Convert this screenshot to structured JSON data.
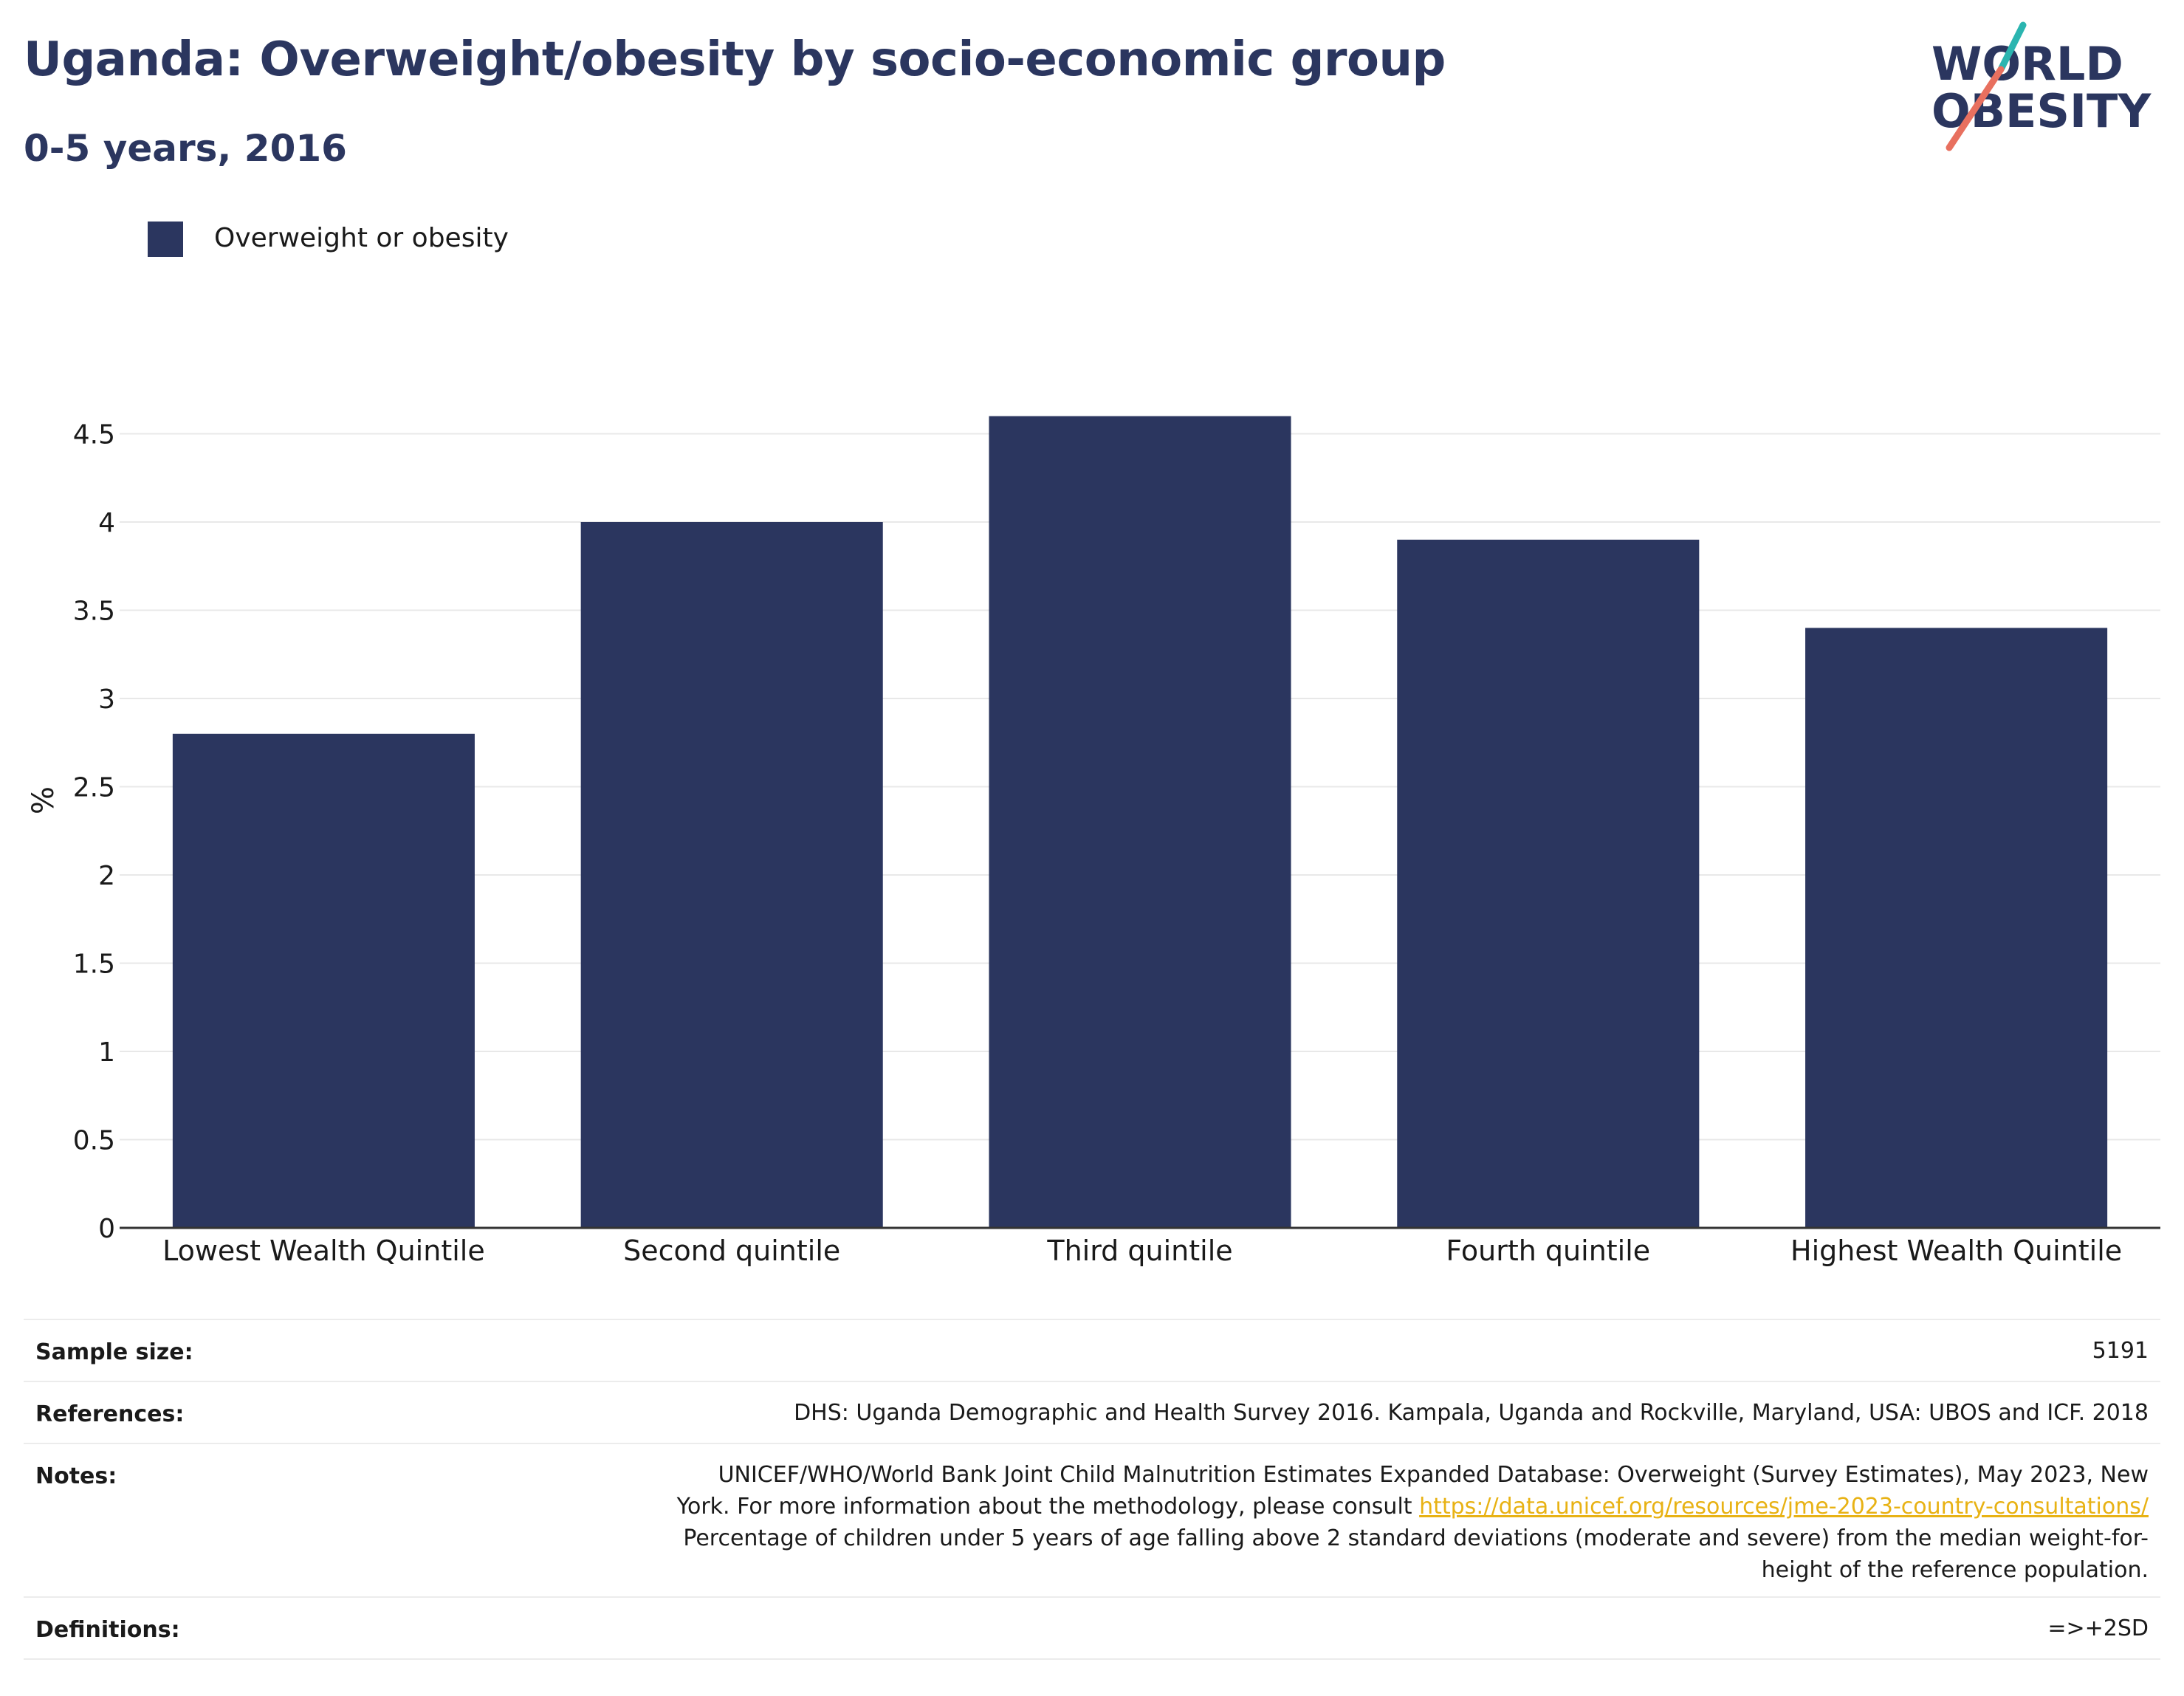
{
  "header": {
    "title": "Uganda: Overweight/obesity by socio-economic group",
    "subtitle": "0-5 years, 2016"
  },
  "logo": {
    "line1": "WORLD",
    "line2": "OBESITY",
    "colors": {
      "text": "#2b365f",
      "slash_top": "#2bb5b0",
      "slash_bottom": "#e8705f"
    }
  },
  "legend": {
    "label": "Overweight or obesity",
    "color": "#2b365f"
  },
  "chart_data": {
    "type": "bar",
    "categories": [
      "Lowest Wealth Quintile",
      "Second quintile",
      "Third quintile",
      "Fourth quintile",
      "Highest Wealth Quintile"
    ],
    "series": [
      {
        "name": "Overweight or obesity",
        "values": [
          2.8,
          4.0,
          4.6,
          3.9,
          3.4
        ],
        "color": "#2b365f"
      }
    ],
    "ylabel": "%",
    "ylim": [
      0,
      4.5
    ],
    "yticks": [
      "0",
      "0.5",
      "1",
      "1.5",
      "2",
      "2.5",
      "3",
      "3.5",
      "4",
      "4.5"
    ],
    "grid": true,
    "legend_position": "top-left"
  },
  "info": {
    "sample_size_label": "Sample size:",
    "sample_size_value": "5191",
    "references_label": "References:",
    "references_value": "DHS: Uganda Demographic and Health Survey 2016. Kampala, Uganda and Rockville, Maryland, USA: UBOS and ICF. 2018",
    "notes_label": "Notes:",
    "notes_line1": "UNICEF/WHO/World Bank Joint Child Malnutrition Estimates Expanded Database: Overweight (Survey Estimates), May 2023, New",
    "notes_line2": "York. For more information about the methodology, please consult ",
    "notes_link": "https://data.unicef.org/resources/jme-2023-country-consultations/",
    "notes_line3": "Percentage of children under 5 years of age falling above 2 standard deviations (moderate and severe) from the median weight-for-",
    "notes_line4": "height of the reference population.",
    "definitions_label": "Definitions:",
    "definitions_value": "=>+2SD"
  }
}
